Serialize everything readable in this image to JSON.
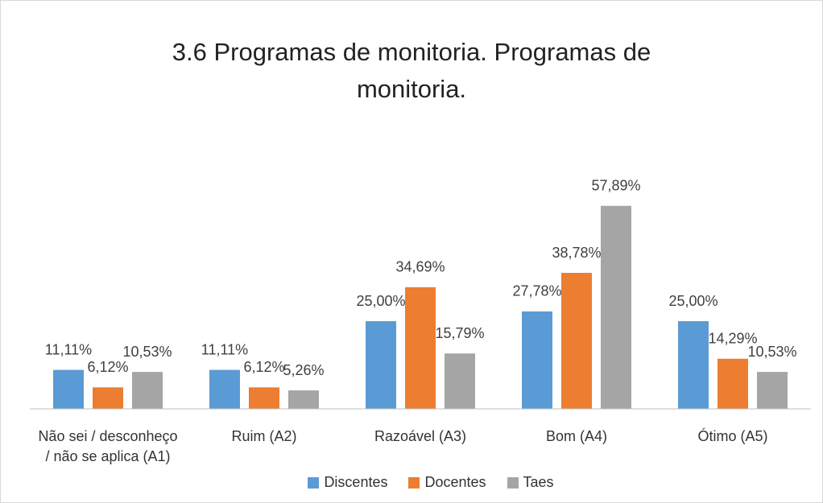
{
  "chart_data": {
    "type": "bar",
    "title": "3.6 Programas de monitoria. Programas de monitoria.",
    "categories": [
      "Não sei / desconheço / não se aplica (A1)",
      "Ruim (A2)",
      "Razoável (A3)",
      "Bom (A4)",
      "Ótimo (A5)"
    ],
    "series": [
      {
        "name": "Discentes",
        "color": "#5b9bd5",
        "values": [
          11.11,
          11.11,
          25.0,
          27.78,
          25.0
        ],
        "value_labels": [
          "11,11%",
          "11,11%",
          "25,00%",
          "27,78%",
          "25,00%"
        ]
      },
      {
        "name": "Docentes",
        "color": "#ed7d31",
        "values": [
          6.12,
          6.12,
          34.69,
          38.78,
          14.29
        ],
        "value_labels": [
          "6,12%",
          "6,12%",
          "34,69%",
          "38,78%",
          "14,29%"
        ]
      },
      {
        "name": "Taes",
        "color": "#a5a5a5",
        "values": [
          10.53,
          5.26,
          15.79,
          57.89,
          10.53
        ],
        "value_labels": [
          "10,53%",
          "5,26%",
          "15,79%",
          "57,89%",
          "10,53%"
        ]
      }
    ],
    "ylim": [
      0,
      70
    ],
    "legend": "bottom"
  }
}
